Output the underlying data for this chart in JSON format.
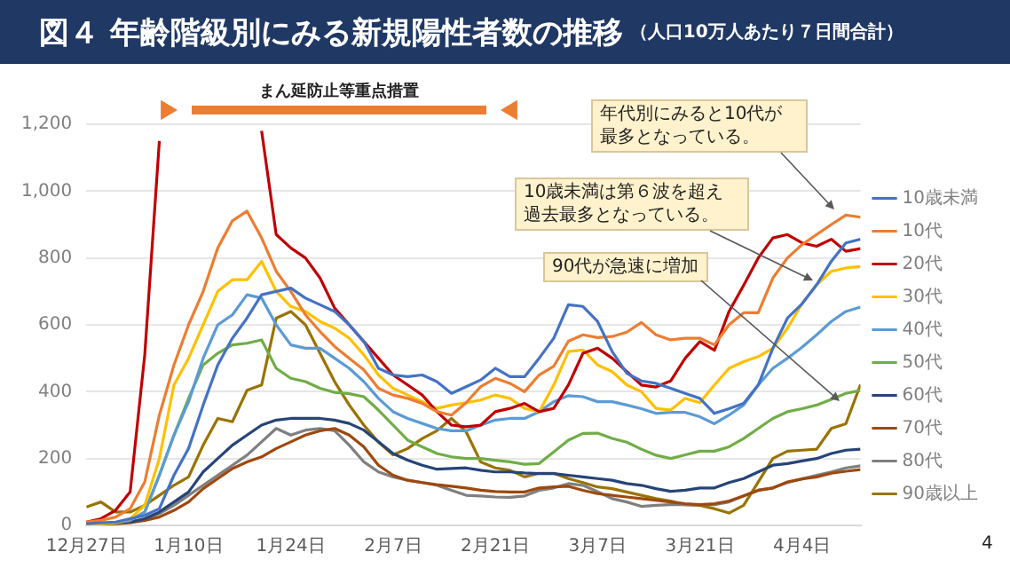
{
  "chart_data": {
    "type": "line",
    "title": "図４ 年齢階級別にみる新規陽性者数の推移",
    "subtitle": "（人口10万人あたり７日間合計）",
    "categories": [
      "12月27日",
      null,
      null,
      null,
      null,
      null,
      null,
      "1月10日",
      null,
      null,
      null,
      null,
      null,
      null,
      "1月24日",
      null,
      null,
      null,
      null,
      null,
      null,
      "2月7日",
      null,
      null,
      null,
      null,
      null,
      null,
      "2月21日",
      null,
      null,
      null,
      null,
      null,
      null,
      "3月7日",
      null,
      null,
      null,
      null,
      null,
      null,
      "3月21日",
      null,
      null,
      null,
      null,
      null,
      null,
      "4月4日",
      null,
      null,
      null,
      null
    ],
    "series": [
      {
        "name": "10歳未満",
        "color": "#4472c4",
        "values": [
          5,
          8,
          10,
          20,
          30,
          50,
          150,
          230,
          360,
          480,
          560,
          620,
          690,
          700,
          710,
          680,
          660,
          640,
          600,
          550,
          470,
          450,
          445,
          450,
          430,
          395,
          415,
          435,
          470,
          445,
          445,
          500,
          560,
          660,
          655,
          610,
          520,
          455,
          432,
          425,
          410,
          395,
          380,
          335,
          349,
          365,
          420,
          530,
          620,
          663,
          720,
          790,
          845,
          856
        ]
      },
      {
        "name": "10代",
        "color": "#ed7d31",
        "values": [
          10,
          15,
          25,
          50,
          130,
          330,
          480,
          600,
          700,
          830,
          911,
          940,
          860,
          760,
          700,
          630,
          580,
          535,
          500,
          465,
          410,
          390,
          380,
          365,
          340,
          330,
          367,
          415,
          440,
          425,
          400,
          450,
          476,
          551,
          570,
          562,
          565,
          578,
          607,
          570,
          555,
          560,
          560,
          540,
          600,
          636,
          636,
          740,
          800,
          840,
          870,
          900,
          928,
          922
        ]
      },
      {
        "name": "20代",
        "color": "#c00000",
        "values": [
          10,
          20,
          45,
          100,
          510,
          1150,
          null,
          null,
          null,
          null,
          null,
          null,
          1180,
          870,
          830,
          800,
          740,
          650,
          600,
          550,
          500,
          450,
          420,
          390,
          340,
          300,
          295,
          300,
          340,
          350,
          365,
          340,
          350,
          420,
          515,
          530,
          500,
          460,
          420,
          414,
          432,
          500,
          550,
          524,
          640,
          718,
          800,
          860,
          870,
          845,
          835,
          856,
          820,
          828
        ]
      },
      {
        "name": "30代",
        "color": "#ffc000",
        "values": [
          3,
          5,
          8,
          20,
          60,
          200,
          420,
          500,
          600,
          700,
          735,
          735,
          790,
          700,
          655,
          640,
          610,
          590,
          560,
          510,
          450,
          410,
          390,
          370,
          350,
          360,
          367,
          375,
          390,
          380,
          350,
          340,
          420,
          520,
          525,
          480,
          460,
          420,
          400,
          350,
          345,
          380,
          367,
          420,
          470,
          490,
          505,
          530,
          590,
          663,
          720,
          760,
          770,
          774
        ]
      },
      {
        "name": "40代",
        "color": "#5b9bd5",
        "values": [
          3,
          5,
          8,
          15,
          40,
          150,
          270,
          370,
          500,
          600,
          630,
          690,
          680,
          600,
          540,
          530,
          530,
          500,
          470,
          430,
          380,
          340,
          320,
          305,
          290,
          283,
          283,
          300,
          315,
          320,
          320,
          340,
          370,
          388,
          385,
          370,
          370,
          360,
          349,
          335,
          338,
          338,
          325,
          304,
          330,
          360,
          420,
          470,
          500,
          533,
          570,
          610,
          640,
          653
        ]
      },
      {
        "name": "50代",
        "color": "#70ad47",
        "values": [
          3,
          5,
          8,
          15,
          40,
          150,
          270,
          380,
          480,
          515,
          540,
          545,
          555,
          470,
          440,
          430,
          410,
          398,
          394,
          385,
          345,
          300,
          255,
          235,
          215,
          205,
          200,
          200,
          195,
          190,
          183,
          185,
          220,
          255,
          275,
          276,
          260,
          249,
          228,
          210,
          200,
          211,
          222,
          222,
          235,
          260,
          290,
          320,
          340,
          349,
          360,
          377,
          395,
          404
        ]
      },
      {
        "name": "60代",
        "color": "#264478",
        "values": [
          5,
          5,
          8,
          10,
          20,
          40,
          70,
          100,
          160,
          200,
          240,
          270,
          300,
          315,
          320,
          320,
          320,
          315,
          305,
          285,
          250,
          215,
          195,
          180,
          168,
          170,
          172,
          165,
          160,
          160,
          157,
          155,
          155,
          150,
          145,
          140,
          135,
          125,
          120,
          110,
          102,
          105,
          112,
          112,
          128,
          140,
          160,
          180,
          185,
          193,
          200,
          215,
          225,
          228
        ]
      },
      {
        "name": "70代",
        "color": "#9e480e",
        "values": [
          5,
          5,
          5,
          8,
          15,
          25,
          45,
          70,
          110,
          140,
          170,
          190,
          205,
          230,
          250,
          270,
          283,
          290,
          270,
          235,
          180,
          150,
          135,
          128,
          122,
          117,
          112,
          105,
          101,
          100,
          100,
          112,
          115,
          117,
          105,
          95,
          90,
          85,
          80,
          75,
          70,
          65,
          62,
          65,
          73,
          88,
          105,
          112,
          130,
          139,
          145,
          156,
          162,
          167
        ]
      },
      {
        "name": "80代",
        "color": "#7f7f7f",
        "values": [
          5,
          5,
          8,
          10,
          20,
          35,
          60,
          90,
          120,
          150,
          180,
          210,
          250,
          290,
          270,
          285,
          290,
          283,
          240,
          190,
          160,
          145,
          135,
          128,
          120,
          105,
          90,
          88,
          85,
          84,
          88,
          105,
          112,
          125,
          120,
          101,
          80,
          70,
          57,
          60,
          62,
          62,
          62,
          62,
          70,
          88,
          105,
          112,
          128,
          139,
          150,
          160,
          172,
          178
        ]
      },
      {
        "name": "90歳以上",
        "color": "#997300",
        "values": [
          55,
          70,
          40,
          40,
          60,
          90,
          120,
          145,
          240,
          320,
          310,
          404,
          420,
          620,
          640,
          600,
          515,
          430,
          360,
          300,
          249,
          211,
          230,
          260,
          283,
          320,
          280,
          190,
          172,
          165,
          145,
          156,
          156,
          140,
          128,
          115,
          110,
          100,
          90,
          80,
          73,
          62,
          60,
          50,
          37,
          60,
          130,
          200,
          222,
          225,
          228,
          290,
          304,
          421
        ]
      }
    ],
    "ylim": [
      0,
      1200
    ],
    "yticks": [
      0,
      200,
      400,
      600,
      800,
      {
        "value": 1000,
        "label": "1,000"
      },
      {
        "value": 1200,
        "label": "1,200"
      }
    ],
    "grid": "y",
    "legend": "right",
    "marker": "none",
    "line_style": "solid",
    "annotations": [
      "まん延防止等重点措置",
      "年代別にみると10代が最多となっている。",
      "10歳未満は第６波を超え過去最多となっている。",
      "90代が急速に増加",
      "4"
    ]
  }
}
